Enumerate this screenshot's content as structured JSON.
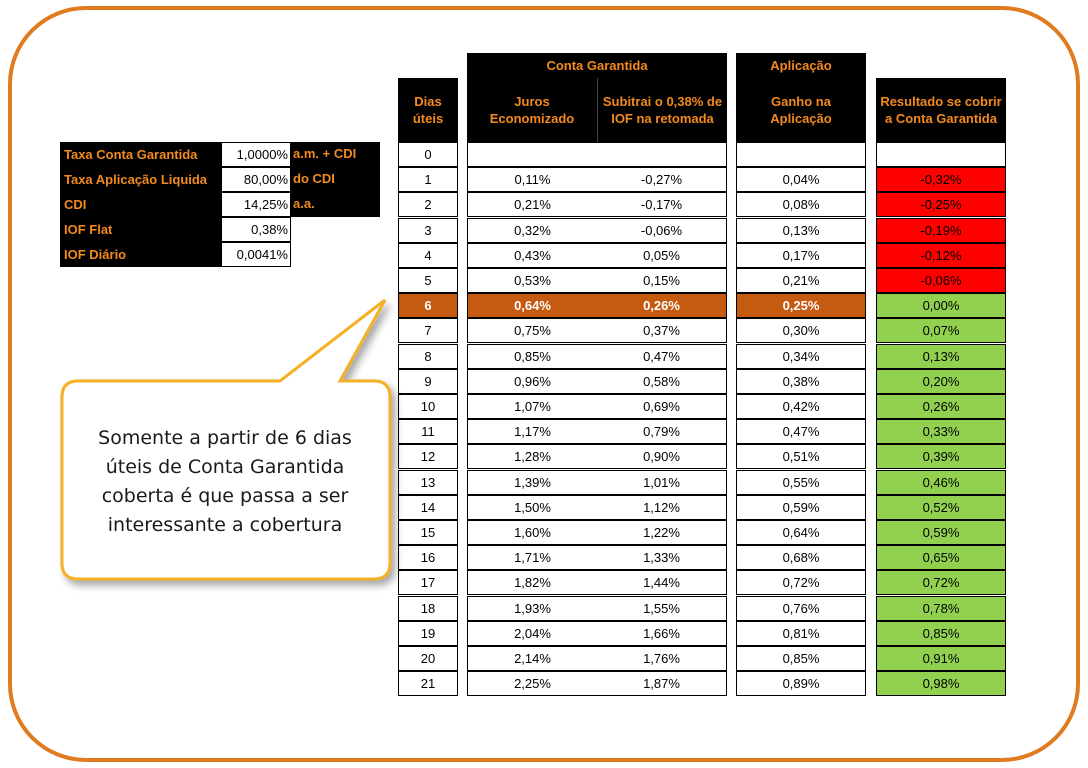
{
  "colors": {
    "frame": "#e07b1f",
    "header_text": "#f28a1f",
    "negative": "#ff0000",
    "positive": "#92d050",
    "highlight": "#c55a11"
  },
  "params": [
    {
      "label": "Taxa Conta Garantida",
      "value": "1,0000%",
      "unit": "a.m. + CDI"
    },
    {
      "label": "Taxa Aplicação Liquida",
      "value": "80,00%",
      "unit": "do CDI"
    },
    {
      "label": "CDI",
      "value": "14,25%",
      "unit": "a.a."
    },
    {
      "label": "IOF Flat",
      "value": "0,38%",
      "unit": ""
    },
    {
      "label": "IOF Diário",
      "value": "0,0041%",
      "unit": ""
    }
  ],
  "groups": {
    "conta_garantida": "Conta Garantida",
    "aplicacao": "Aplicação"
  },
  "headers": {
    "dias": "Dias úteis",
    "juros": "Juros Economizado",
    "iof": "Subitrai o 0,38% de IOF na retomada",
    "ganho": "Ganho na Aplicação",
    "resultado": "Resultado se cobrir a Conta Garantida"
  },
  "callout": "Somente a partir de 6 dias úteis de Conta Garantida coberta é que passa a ser interessante a cobertura",
  "highlight_day": "6",
  "rows": [
    {
      "dia": "0",
      "juros": "",
      "iof": "",
      "ganho": "",
      "resultado": ""
    },
    {
      "dia": "1",
      "juros": "0,11%",
      "iof": "-0,27%",
      "ganho": "0,04%",
      "resultado": "-0,32%"
    },
    {
      "dia": "2",
      "juros": "0,21%",
      "iof": "-0,17%",
      "ganho": "0,08%",
      "resultado": "-0,25%"
    },
    {
      "dia": "3",
      "juros": "0,32%",
      "iof": "-0,06%",
      "ganho": "0,13%",
      "resultado": "-0,19%"
    },
    {
      "dia": "4",
      "juros": "0,43%",
      "iof": "0,05%",
      "ganho": "0,17%",
      "resultado": "-0,12%"
    },
    {
      "dia": "5",
      "juros": "0,53%",
      "iof": "0,15%",
      "ganho": "0,21%",
      "resultado": "-0,06%"
    },
    {
      "dia": "6",
      "juros": "0,64%",
      "iof": "0,26%",
      "ganho": "0,25%",
      "resultado": "0,00%"
    },
    {
      "dia": "7",
      "juros": "0,75%",
      "iof": "0,37%",
      "ganho": "0,30%",
      "resultado": "0,07%"
    },
    {
      "dia": "8",
      "juros": "0,85%",
      "iof": "0,47%",
      "ganho": "0,34%",
      "resultado": "0,13%"
    },
    {
      "dia": "9",
      "juros": "0,96%",
      "iof": "0,58%",
      "ganho": "0,38%",
      "resultado": "0,20%"
    },
    {
      "dia": "10",
      "juros": "1,07%",
      "iof": "0,69%",
      "ganho": "0,42%",
      "resultado": "0,26%"
    },
    {
      "dia": "11",
      "juros": "1,17%",
      "iof": "0,79%",
      "ganho": "0,47%",
      "resultado": "0,33%"
    },
    {
      "dia": "12",
      "juros": "1,28%",
      "iof": "0,90%",
      "ganho": "0,51%",
      "resultado": "0,39%"
    },
    {
      "dia": "13",
      "juros": "1,39%",
      "iof": "1,01%",
      "ganho": "0,55%",
      "resultado": "0,46%"
    },
    {
      "dia": "14",
      "juros": "1,50%",
      "iof": "1,12%",
      "ganho": "0,59%",
      "resultado": "0,52%"
    },
    {
      "dia": "15",
      "juros": "1,60%",
      "iof": "1,22%",
      "ganho": "0,64%",
      "resultado": "0,59%"
    },
    {
      "dia": "16",
      "juros": "1,71%",
      "iof": "1,33%",
      "ganho": "0,68%",
      "resultado": "0,65%"
    },
    {
      "dia": "17",
      "juros": "1,82%",
      "iof": "1,44%",
      "ganho": "0,72%",
      "resultado": "0,72%"
    },
    {
      "dia": "18",
      "juros": "1,93%",
      "iof": "1,55%",
      "ganho": "0,76%",
      "resultado": "0,78%"
    },
    {
      "dia": "19",
      "juros": "2,04%",
      "iof": "1,66%",
      "ganho": "0,81%",
      "resultado": "0,85%"
    },
    {
      "dia": "20",
      "juros": "2,14%",
      "iof": "1,76%",
      "ganho": "0,85%",
      "resultado": "0,91%"
    },
    {
      "dia": "21",
      "juros": "2,25%",
      "iof": "1,87%",
      "ganho": "0,89%",
      "resultado": "0,98%"
    }
  ]
}
